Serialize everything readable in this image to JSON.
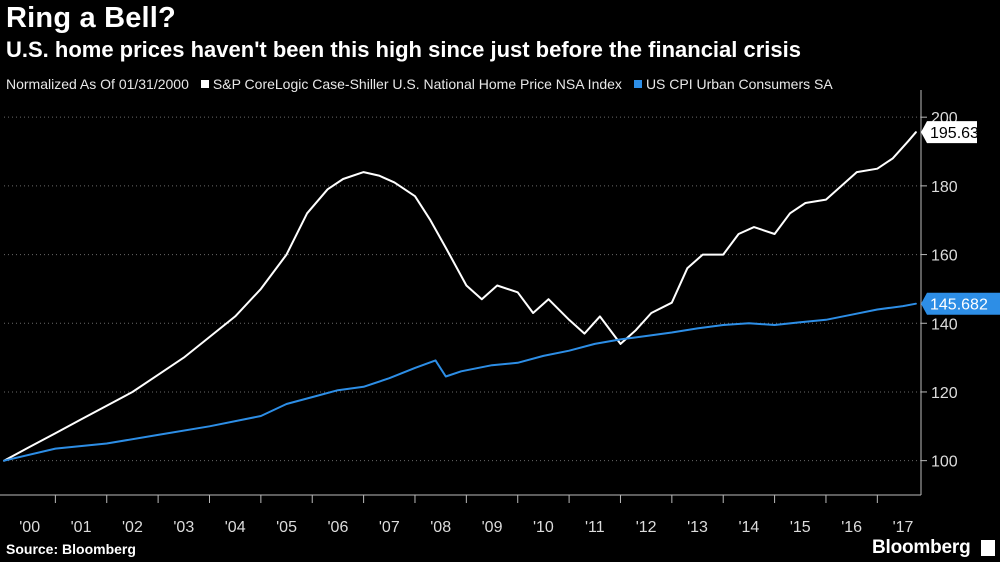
{
  "chart_data": {
    "type": "line",
    "title": "Ring a Bell?",
    "subtitle": "U.S. home prices haven't been this high since just before the financial crisis",
    "normalization_note": "Normalized As Of 01/31/2000",
    "x_tick_labels": [
      "'00",
      "'01",
      "'02",
      "'03",
      "'04",
      "'05",
      "'06",
      "'07",
      "'08",
      "'09",
      "'10",
      "'11",
      "'12",
      "'13",
      "'14",
      "'15",
      "'16",
      "'17"
    ],
    "x_range": [
      2000.0,
      2017.85
    ],
    "y_ticks": [
      100,
      120,
      140,
      160,
      180,
      200
    ],
    "ylim": [
      90,
      205
    ],
    "grid": "horizontal dotted",
    "legend_position": "top",
    "series": [
      {
        "name": "S&P CoreLogic Case-Shiller U.S. National Home Price NSA Index",
        "color": "#ffffff",
        "last_value": "195.63",
        "x": [
          2000.0,
          2000.5,
          2001.0,
          2001.5,
          2002.0,
          2002.5,
          2003.0,
          2003.5,
          2004.0,
          2004.5,
          2005.0,
          2005.5,
          2005.9,
          2006.3,
          2006.6,
          2007.0,
          2007.3,
          2007.6,
          2008.0,
          2008.3,
          2008.6,
          2009.0,
          2009.3,
          2009.6,
          2010.0,
          2010.3,
          2010.6,
          2011.0,
          2011.3,
          2011.6,
          2012.0,
          2012.3,
          2012.6,
          2013.0,
          2013.3,
          2013.6,
          2014.0,
          2014.3,
          2014.6,
          2015.0,
          2015.3,
          2015.6,
          2016.0,
          2016.3,
          2016.6,
          2017.0,
          2017.3,
          2017.6,
          2017.75
        ],
        "y": [
          100,
          104,
          108,
          112,
          116,
          120,
          125,
          130,
          136,
          142,
          150,
          160,
          172,
          179,
          182,
          184,
          183,
          181,
          177,
          170,
          162,
          151,
          147,
          151,
          149,
          143,
          147,
          141,
          137,
          142,
          134,
          138,
          143,
          146,
          156,
          160,
          160,
          166,
          168,
          166,
          172,
          175,
          176,
          180,
          184,
          185,
          188,
          193,
          195.63
        ]
      },
      {
        "name": "US CPI Urban Consumers SA",
        "color": "#2d8ee6",
        "last_value": "145.682",
        "x": [
          2000.0,
          2001.0,
          2002.0,
          2003.0,
          2004.0,
          2005.0,
          2005.5,
          2006.0,
          2006.5,
          2007.0,
          2007.5,
          2008.0,
          2008.4,
          2008.6,
          2008.9,
          2009.5,
          2010.0,
          2010.5,
          2011.0,
          2011.5,
          2012.0,
          2012.5,
          2013.0,
          2013.5,
          2014.0,
          2014.5,
          2015.0,
          2015.5,
          2016.0,
          2016.5,
          2017.0,
          2017.5,
          2017.75
        ],
        "y": [
          100,
          103.5,
          105,
          107.5,
          110,
          113,
          116.5,
          118.5,
          120.5,
          121.5,
          124,
          127,
          129.2,
          124.5,
          126,
          127.8,
          128.5,
          130.5,
          132,
          134,
          135.3,
          136.3,
          137.3,
          138.5,
          139.5,
          140,
          139.5,
          140.3,
          141,
          142.5,
          144,
          145,
          145.682
        ]
      }
    ]
  }
}
